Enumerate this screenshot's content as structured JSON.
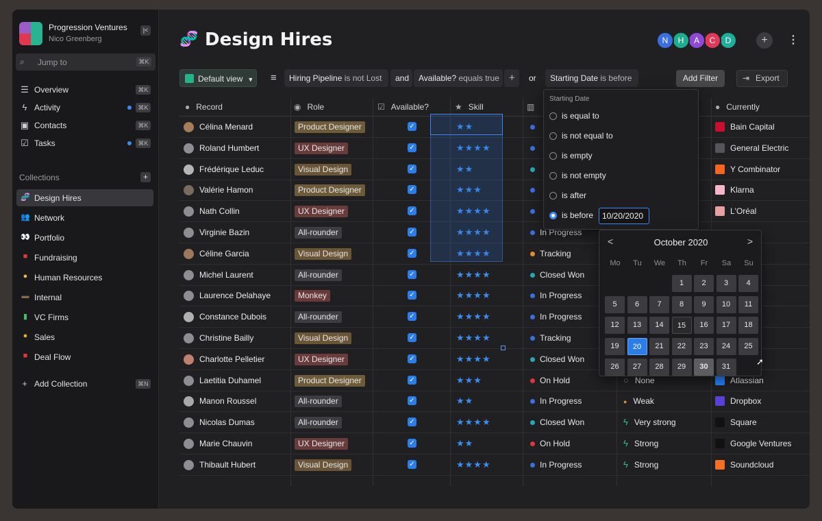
{
  "sidebar": {
    "workspace": "Progression Ventures",
    "user": "Nico Greenberg",
    "jump": "Jump to",
    "jump_kbd": "⌘K",
    "nav": [
      {
        "label": "Overview",
        "icon": "list-icon",
        "kbd": "⌘K",
        "dot": false
      },
      {
        "label": "Activity",
        "icon": "bolt-icon",
        "kbd": "⌘K",
        "dot": true
      },
      {
        "label": "Contacts",
        "icon": "contacts-icon",
        "kbd": "⌘K",
        "dot": false
      },
      {
        "label": "Tasks",
        "icon": "tasks-icon",
        "kbd": "⌘K",
        "dot": true
      }
    ],
    "collections_title": "Collections",
    "collections": [
      {
        "label": "Design Hires",
        "icon": "dna",
        "color": "#b87be6"
      },
      {
        "label": "Network",
        "icon": "people",
        "color": "#5a8ad8"
      },
      {
        "label": "Portfolio",
        "icon": "eyes",
        "color": "#ffffff"
      },
      {
        "label": "Fundraising",
        "icon": "bag",
        "color": "#d93a3a"
      },
      {
        "label": "Human Resources",
        "icon": "person",
        "color": "#e6b84a"
      },
      {
        "label": "Internal",
        "icon": "box",
        "color": "#8a6a4a"
      },
      {
        "label": "VC Firms",
        "icon": "doc",
        "color": "#3fbf6a"
      },
      {
        "label": "Sales",
        "icon": "medal",
        "color": "#e6b030"
      },
      {
        "label": "Deal Flow",
        "icon": "bag",
        "color": "#d93a3a"
      }
    ],
    "add_collection": "Add Collection",
    "add_kbd": "⌘N"
  },
  "page": {
    "title": "Design Hires",
    "avatars": [
      {
        "l": "N",
        "c": "#3a6fe0"
      },
      {
        "l": "H",
        "c": "#1fae8c"
      },
      {
        "l": "A",
        "c": "#8f49d8"
      },
      {
        "l": "C",
        "c": "#e0395a"
      },
      {
        "l": "D",
        "c": "#1fae9c"
      }
    ]
  },
  "toolbar": {
    "view": "Default view",
    "f1a": "Hiring Pipeline",
    "f1b": "is not Lost",
    "and": "and",
    "f2a": "Available?",
    "f2b": "equals true",
    "or": "or",
    "f3a": "Starting Date",
    "f3b": "is before",
    "add_filter": "Add Filter",
    "export": "Export"
  },
  "table": {
    "headers": {
      "record": "Record",
      "role": "Role",
      "available": "Available?",
      "skill": "Skill",
      "currently": "Currently"
    },
    "rows": [
      {
        "name": "Célina Menard",
        "role": "Product Designer",
        "stars": "★★",
        "status": "",
        "status_color": "#3a6fe0",
        "wt": "",
        "comp": "Bain Capital",
        "comp_color": "#c8102e"
      },
      {
        "name": "Roland Humbert",
        "role": "UX Designer",
        "stars": "★★★★",
        "status": "",
        "status_color": "#3a6fe0",
        "wt": "",
        "comp": "General Electric",
        "comp_color": "#555559"
      },
      {
        "name": "Frédérique Leduc",
        "role": "Visual Design",
        "stars": "★★",
        "status": "",
        "status_color": "#2aa7b5",
        "wt": "",
        "comp": "Y Combinator",
        "comp_color": "#f26522"
      },
      {
        "name": "Valérie Hamon",
        "role": "Product Designer",
        "stars": "★★★",
        "status": "",
        "status_color": "#3a6fe0",
        "wt": "",
        "comp": "Klarna",
        "comp_color": "#f5b6c8"
      },
      {
        "name": "Nath Collin",
        "role": "UX Designer",
        "stars": "★★★★",
        "status": "",
        "status_color": "#3a6fe0",
        "wt": "",
        "comp": "L'Oréal",
        "comp_color": "#e8a0a0"
      },
      {
        "name": "Virginie Bazin",
        "role": "All-rounder",
        "stars": "★★★★",
        "status": "In Progress",
        "status_color": "#3a6fe0",
        "wt": "",
        "comp": "",
        "comp_color": ""
      },
      {
        "name": "Céline Garcia",
        "role": "Visual Design",
        "stars": "★★★★",
        "status": "Tracking",
        "status_color": "#e38b2c",
        "wt": "",
        "comp": "",
        "comp_color": ""
      },
      {
        "name": "Michel Laurent",
        "role": "All-rounder",
        "stars": "★★★★",
        "status": "Closed Won",
        "status_color": "#2aa7b5",
        "wt": "",
        "comp": "",
        "comp_color": ""
      },
      {
        "name": "Laurence Delahaye",
        "role": "Monkey",
        "stars": "★★★★",
        "status": "In Progress",
        "status_color": "#3a6fe0",
        "wt": "",
        "comp": "ks",
        "comp_color": ""
      },
      {
        "name": "Constance Dubois",
        "role": "All-rounder",
        "stars": "★★★★",
        "status": "In Progress",
        "status_color": "#3a6fe0",
        "wt": "",
        "comp": "ok",
        "comp_color": ""
      },
      {
        "name": "Christine Bailly",
        "role": "Visual Design",
        "stars": "★★★★",
        "status": "Tracking",
        "status_color": "#3a6fe0",
        "wt": "",
        "comp": "ld's",
        "comp_color": ""
      },
      {
        "name": "Charlotte Pelletier",
        "role": "UX Designer",
        "stars": "★★★★",
        "status": "Closed Won",
        "status_color": "#2aa7b5",
        "wt": "",
        "comp": "America",
        "comp_color": ""
      },
      {
        "name": "Laetitia Duhamel",
        "role": "Product Designer",
        "stars": "★★★",
        "status": "On Hold",
        "status_color": "#d9363e",
        "wt": "None",
        "wt_icon": "none",
        "comp": "Atlassian",
        "comp_color": "#2684ff"
      },
      {
        "name": "Manon Roussel",
        "role": "All-rounder",
        "stars": "★★",
        "status": "In Progress",
        "status_color": "#3a6fe0",
        "wt": "Weak",
        "wt_icon": "dot",
        "comp": "Dropbox",
        "comp_color": "#5a3fd8"
      },
      {
        "name": "Nicolas Dumas",
        "role": "All-rounder",
        "stars": "★★★★",
        "status": "Closed Won",
        "status_color": "#2aa7b5",
        "wt": "Very strong",
        "wt_icon": "bolt",
        "comp": "Square",
        "comp_color": "#111"
      },
      {
        "name": "Marie Chauvin",
        "role": "UX Designer",
        "stars": "★★",
        "status": "On Hold",
        "status_color": "#d9363e",
        "wt": "Strong",
        "wt_icon": "bolt",
        "comp": "Google Ventures",
        "comp_color": "#111"
      },
      {
        "name": "Thibault Hubert",
        "role": "Visual Design",
        "stars": "★★★★",
        "status": "In Progress",
        "status_color": "#3a6fe0",
        "wt": "Strong",
        "wt_icon": "bolt",
        "comp": "Soundcloud",
        "comp_color": "#f26f23"
      }
    ]
  },
  "dropdown": {
    "title": "Starting Date",
    "options": [
      "is equal to",
      "is not equal to",
      "is empty",
      "is not empty",
      "is after",
      "is before"
    ],
    "value": "10/20/2020"
  },
  "calendar": {
    "title": "October 2020",
    "dow": [
      "Mo",
      "Tu",
      "We",
      "Th",
      "Fr",
      "Sa",
      "Su"
    ],
    "selected": 20,
    "today": 15,
    "highlight": 30
  },
  "colors": {
    "accent": "#2b7de9",
    "tag_product": "#6e5b3a",
    "tag_ux": "#6a3b3b",
    "tag_visual": "#6b5537",
    "tag_allround": "#3e3e42",
    "tag_monkey": "#6a3a3a"
  }
}
